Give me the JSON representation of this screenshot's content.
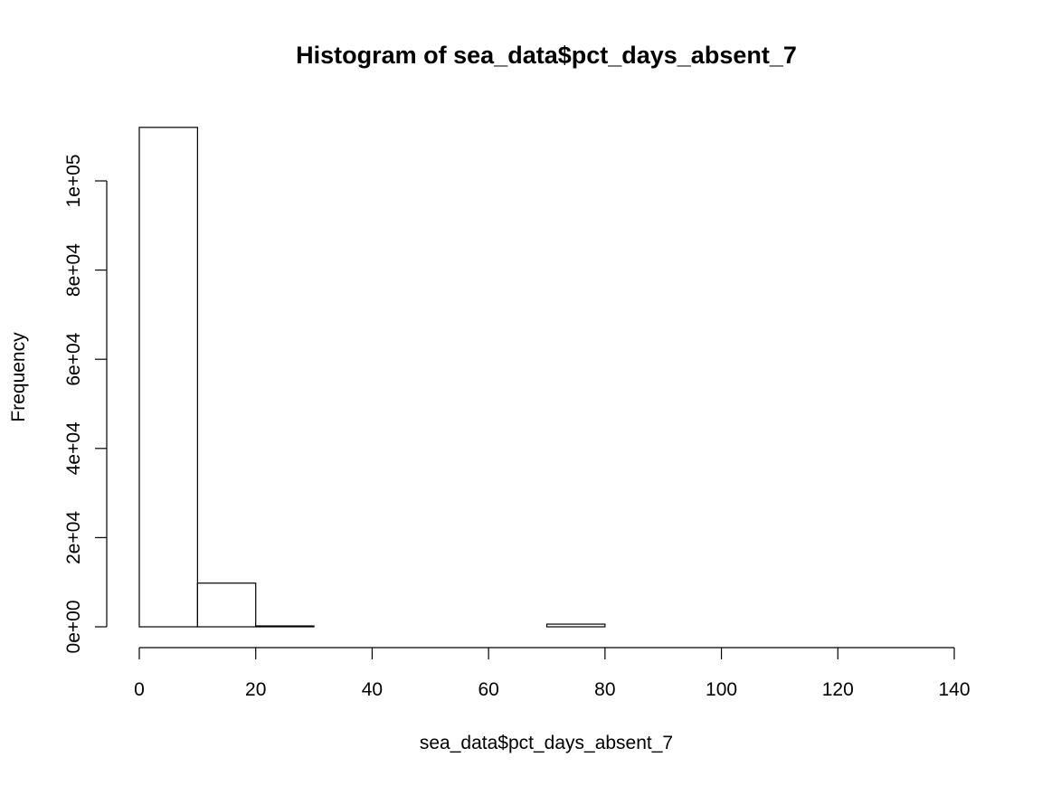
{
  "chart_data": {
    "type": "bar",
    "title": "Histogram of sea_data$pct_days_absent_7",
    "xlabel": "sea_data$pct_days_absent_7",
    "ylabel": "Frequency",
    "xlim": [
      0,
      140
    ],
    "ylim": [
      0,
      112000
    ],
    "x_ticks": [
      0,
      20,
      40,
      60,
      80,
      100,
      120,
      140
    ],
    "x_tick_labels": [
      "0",
      "20",
      "40",
      "60",
      "80",
      "100",
      "120",
      "140"
    ],
    "y_ticks": [
      0,
      20000,
      40000,
      60000,
      80000,
      100000
    ],
    "y_tick_labels": [
      "0e+00",
      "2e+04",
      "4e+04",
      "6e+04",
      "8e+04",
      "1e+05"
    ],
    "bins": [
      {
        "x0": 0,
        "x1": 10,
        "count": 112000
      },
      {
        "x0": 10,
        "x1": 20,
        "count": 9800
      },
      {
        "x0": 20,
        "x1": 30,
        "count": 200
      },
      {
        "x0": 30,
        "x1": 40,
        "count": 0
      },
      {
        "x0": 40,
        "x1": 50,
        "count": 0
      },
      {
        "x0": 50,
        "x1": 60,
        "count": 0
      },
      {
        "x0": 60,
        "x1": 70,
        "count": 0
      },
      {
        "x0": 70,
        "x1": 80,
        "count": 600
      },
      {
        "x0": 80,
        "x1": 90,
        "count": 0
      },
      {
        "x0": 90,
        "x1": 100,
        "count": 0
      },
      {
        "x0": 100,
        "x1": 110,
        "count": 0
      },
      {
        "x0": 110,
        "x1": 120,
        "count": 0
      },
      {
        "x0": 120,
        "x1": 130,
        "count": 0
      },
      {
        "x0": 130,
        "x1": 140,
        "count": 0
      }
    ],
    "bar_fill": "#ffffff",
    "bar_stroke": "#000000",
    "grid": false,
    "legend": "none"
  }
}
